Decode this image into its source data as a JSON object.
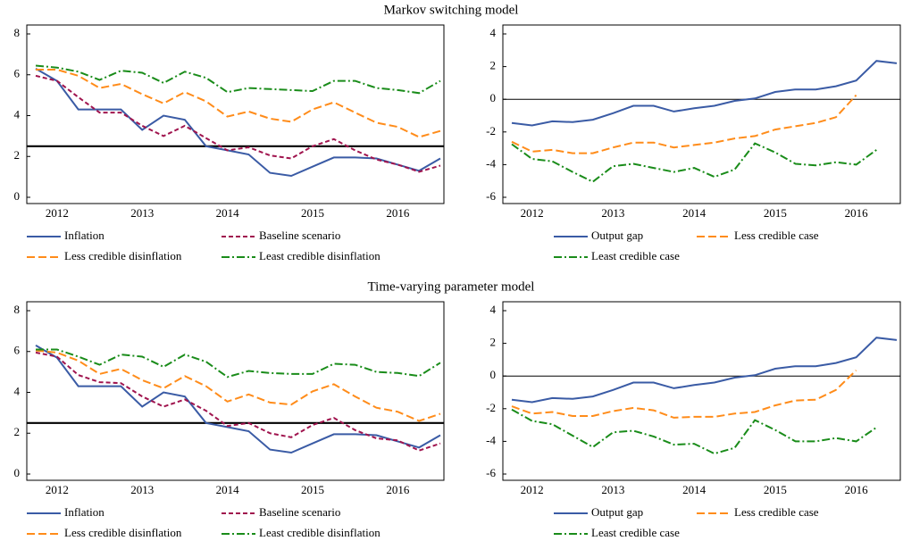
{
  "chart_data": [
    {
      "type": "line",
      "title": "Markov switching model",
      "categories": [
        null,
        "2012",
        null,
        null,
        null,
        "2013",
        null,
        null,
        null,
        "2014",
        null,
        null,
        null,
        "2015",
        null,
        null,
        null,
        "2016",
        null,
        null
      ],
      "ylim": [
        0,
        8
      ],
      "yticks": [
        0,
        2,
        4,
        6,
        8
      ],
      "hline": 2.5,
      "series": [
        {
          "name": "Inflation",
          "color": "#3a5ba5",
          "style": "solid",
          "values": [
            6.3,
            5.7,
            4.3,
            4.3,
            4.3,
            3.3,
            4.0,
            3.8,
            2.5,
            2.3,
            2.1,
            1.2,
            1.05,
            1.5,
            1.95,
            1.95,
            1.9,
            1.6,
            1.3,
            1.9
          ]
        },
        {
          "name": "Baseline scenario",
          "color": "#a0144e",
          "style": "dash",
          "values": [
            5.95,
            5.7,
            4.9,
            4.15,
            4.15,
            3.5,
            3.0,
            3.5,
            2.9,
            2.3,
            2.45,
            2.05,
            1.9,
            2.5,
            2.85,
            2.3,
            1.85,
            1.6,
            1.25,
            1.55
          ]
        },
        {
          "name": "Less credible disinflation",
          "color": "#ff8c1a",
          "style": "longdash",
          "values": [
            6.25,
            6.25,
            5.95,
            5.35,
            5.55,
            5.05,
            4.6,
            5.15,
            4.7,
            3.95,
            4.2,
            3.85,
            3.7,
            4.3,
            4.65,
            4.15,
            3.65,
            3.45,
            2.95,
            3.25
          ]
        },
        {
          "name": "Least credible disinflation",
          "color": "#1a8c1a",
          "style": "dashdot",
          "values": [
            6.45,
            6.35,
            6.15,
            5.75,
            6.2,
            6.1,
            5.6,
            6.15,
            5.85,
            5.15,
            5.35,
            5.3,
            5.25,
            5.2,
            5.7,
            5.7,
            5.35,
            5.25,
            5.1,
            5.7
          ]
        }
      ]
    },
    {
      "type": "line",
      "categories": [
        null,
        "2012",
        null,
        null,
        null,
        "2013",
        null,
        null,
        null,
        "2014",
        null,
        null,
        null,
        "2015",
        null,
        null,
        null,
        "2016",
        null,
        null
      ],
      "ylim": [
        -6,
        4
      ],
      "yticks": [
        -6,
        -4,
        -2,
        0,
        2,
        4
      ],
      "hline": 0,
      "series": [
        {
          "name": "Output gap",
          "color": "#3a5ba5",
          "style": "solid",
          "values": [
            -1.45,
            -1.6,
            -1.35,
            -1.4,
            -1.25,
            -0.85,
            -0.4,
            -0.4,
            -0.75,
            -0.55,
            -0.4,
            -0.1,
            0.05,
            0.45,
            0.6,
            0.6,
            0.8,
            1.15,
            2.35,
            2.2
          ]
        },
        {
          "name": "Less credible case",
          "color": "#ff8c1a",
          "style": "longdash",
          "values": [
            -2.6,
            -3.2,
            -3.1,
            -3.3,
            -3.3,
            -2.95,
            -2.65,
            -2.65,
            -2.95,
            -2.8,
            -2.65,
            -2.4,
            -2.25,
            -1.85,
            -1.65,
            -1.45,
            -1.1,
            0.25,
            null,
            null
          ]
        },
        {
          "name": "Least credible case",
          "color": "#1a8c1a",
          "style": "dashdot",
          "values": [
            -2.75,
            -3.65,
            -3.8,
            -4.45,
            -5.05,
            -4.1,
            -3.95,
            -4.2,
            -4.45,
            -4.2,
            -4.75,
            -4.3,
            -2.7,
            -3.25,
            -3.95,
            -4.05,
            -3.85,
            -4.0,
            -3.1,
            null
          ]
        }
      ]
    },
    {
      "type": "line",
      "title": "Time-varying parameter model",
      "categories": [
        null,
        "2012",
        null,
        null,
        null,
        "2013",
        null,
        null,
        null,
        "2014",
        null,
        null,
        null,
        "2015",
        null,
        null,
        null,
        "2016",
        null,
        null
      ],
      "ylim": [
        0,
        8
      ],
      "yticks": [
        0,
        2,
        4,
        6,
        8
      ],
      "hline": 2.5,
      "series": [
        {
          "name": "Inflation",
          "color": "#3a5ba5",
          "style": "solid",
          "values": [
            6.3,
            5.7,
            4.3,
            4.3,
            4.3,
            3.3,
            4.0,
            3.8,
            2.5,
            2.3,
            2.1,
            1.2,
            1.05,
            1.5,
            1.95,
            1.95,
            1.9,
            1.6,
            1.3,
            1.9
          ]
        },
        {
          "name": "Baseline scenario",
          "color": "#a0144e",
          "style": "dash",
          "values": [
            5.95,
            5.75,
            4.85,
            4.5,
            4.45,
            3.8,
            3.3,
            3.65,
            3.1,
            2.35,
            2.5,
            2.0,
            1.8,
            2.4,
            2.75,
            2.15,
            1.75,
            1.65,
            1.15,
            1.5
          ]
        },
        {
          "name": "Less credible disinflation",
          "color": "#ff8c1a",
          "style": "longdash",
          "values": [
            6.05,
            5.95,
            5.55,
            4.9,
            5.15,
            4.6,
            4.2,
            4.8,
            4.3,
            3.55,
            3.9,
            3.5,
            3.4,
            4.05,
            4.4,
            3.8,
            3.25,
            3.05,
            2.6,
            2.95
          ]
        },
        {
          "name": "Least credible disinflation",
          "color": "#1a8c1a",
          "style": "dashdot",
          "values": [
            6.1,
            6.1,
            5.75,
            5.35,
            5.85,
            5.75,
            5.25,
            5.85,
            5.5,
            4.75,
            5.05,
            4.95,
            4.9,
            4.9,
            5.4,
            5.35,
            5.0,
            4.95,
            4.8,
            5.45
          ]
        }
      ]
    },
    {
      "type": "line",
      "categories": [
        null,
        "2012",
        null,
        null,
        null,
        "2013",
        null,
        null,
        null,
        "2014",
        null,
        null,
        null,
        "2015",
        null,
        null,
        null,
        "2016",
        null,
        null
      ],
      "ylim": [
        -6,
        4
      ],
      "yticks": [
        -6,
        -4,
        -2,
        0,
        2,
        4
      ],
      "hline": 0,
      "series": [
        {
          "name": "Output gap",
          "color": "#3a5ba5",
          "style": "solid",
          "values": [
            -1.45,
            -1.6,
            -1.35,
            -1.4,
            -1.25,
            -0.85,
            -0.4,
            -0.4,
            -0.75,
            -0.55,
            -0.4,
            -0.1,
            0.05,
            0.45,
            0.6,
            0.6,
            0.8,
            1.15,
            2.35,
            2.2
          ]
        },
        {
          "name": "Less credible case",
          "color": "#ff8c1a",
          "style": "longdash",
          "values": [
            -1.85,
            -2.3,
            -2.2,
            -2.45,
            -2.45,
            -2.15,
            -1.95,
            -2.1,
            -2.55,
            -2.5,
            -2.5,
            -2.3,
            -2.2,
            -1.8,
            -1.5,
            -1.45,
            -0.85,
            0.35,
            null,
            null
          ]
        },
        {
          "name": "Least credible case",
          "color": "#1a8c1a",
          "style": "dashdot",
          "values": [
            -2.05,
            -2.75,
            -2.95,
            -3.65,
            -4.35,
            -3.45,
            -3.35,
            -3.7,
            -4.2,
            -4.15,
            -4.75,
            -4.4,
            -2.7,
            -3.3,
            -4.0,
            -4.0,
            -3.8,
            -4.0,
            -3.15,
            null
          ]
        }
      ]
    }
  ]
}
